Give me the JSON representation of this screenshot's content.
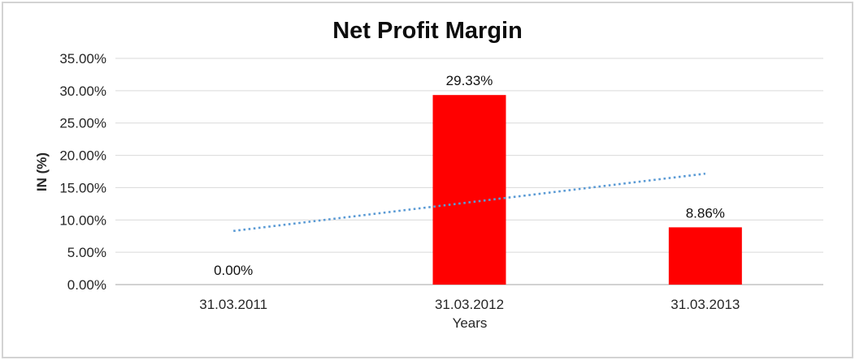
{
  "window": {
    "background": "#ffffff",
    "border_color": "#d3d3d3"
  },
  "chart_data": {
    "type": "bar",
    "title": "Net Profit Margin",
    "xlabel": "Years",
    "ylabel": "IN (%)",
    "categories": [
      "31.03.2011",
      "31.03.2012",
      "31.03.2013"
    ],
    "series": [
      {
        "name": "Net Profit Margin",
        "values": [
          0.0,
          29.33,
          8.86
        ],
        "data_labels": [
          "0.00%",
          "29.33%",
          "8.86%"
        ],
        "color": "#ff0000"
      }
    ],
    "trendline": {
      "type": "linear-dotted",
      "start_value": 8.3,
      "end_value": 17.16,
      "color": "#5b9bd5"
    },
    "ylim": [
      0,
      35
    ],
    "ytick_step": 5,
    "ytick_labels": [
      "0.00%",
      "5.00%",
      "10.00%",
      "15.00%",
      "20.00%",
      "25.00%",
      "30.00%",
      "35.00%"
    ],
    "grid": "horizontal",
    "legend": "none"
  },
  "style": {
    "bar_color": "#ff0000",
    "trendline_color": "#5b9bd5",
    "gridline_color": "#d9d9d9",
    "axis_line_color": "#c3c3c3",
    "tick_text_color": "#262626",
    "title_color": "#0d0d0d"
  }
}
